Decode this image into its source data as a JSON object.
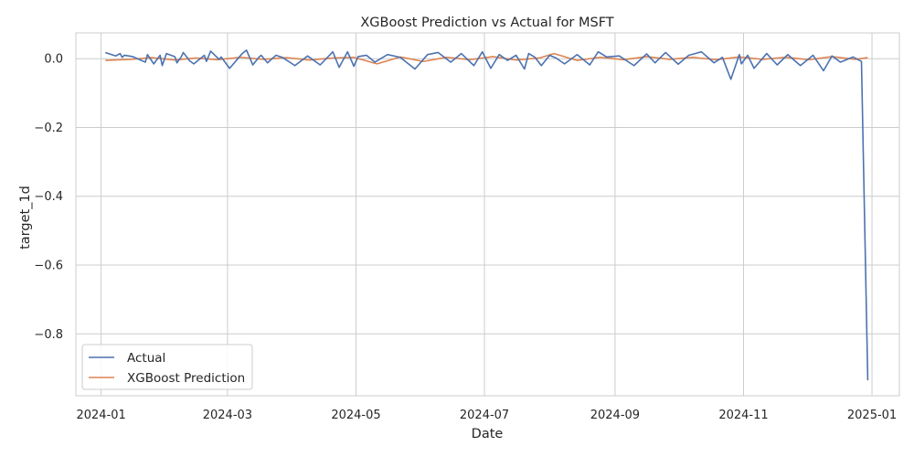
{
  "chart_data": {
    "type": "line",
    "title": "XGBoost Prediction vs Actual for MSFT",
    "xlabel": "Date",
    "ylabel": "target_1d",
    "x_ticks": [
      "2024-01",
      "2024-03",
      "2024-05",
      "2024-07",
      "2024-09",
      "2024-11",
      "2025-01"
    ],
    "y_ticks": [
      0.0,
      -0.2,
      -0.4,
      -0.6,
      -0.8
    ],
    "y_tick_labels": [
      "0.0",
      "−0.2",
      "−0.4",
      "−0.6",
      "−0.8"
    ],
    "xlim": [
      "2023-12-20",
      "2025-01-14"
    ],
    "ylim": [
      -0.98,
      0.075
    ],
    "grid": true,
    "legend_position": "lower-left",
    "series": [
      {
        "name": "Actual",
        "color": "#4c72b0",
        "x": [
          "2024-01-03",
          "2024-01-08",
          "2024-01-10",
          "2024-01-11",
          "2024-01-12",
          "2024-01-16",
          "2024-01-22",
          "2024-01-23",
          "2024-01-26",
          "2024-01-29",
          "2024-01-30",
          "2024-02-01",
          "2024-02-05",
          "2024-02-06",
          "2024-02-08",
          "2024-02-09",
          "2024-02-12",
          "2024-02-14",
          "2024-02-19",
          "2024-02-20",
          "2024-02-22",
          "2024-02-26",
          "2024-02-27",
          "2024-03-02",
          "2024-03-08",
          "2024-03-10",
          "2024-03-13",
          "2024-03-16",
          "2024-03-17",
          "2024-03-20",
          "2024-03-24",
          "2024-03-27",
          "2024-04-02",
          "2024-04-08",
          "2024-04-14",
          "2024-04-20",
          "2024-04-23",
          "2024-04-27",
          "2024-04-30",
          "2024-05-02",
          "2024-05-06",
          "2024-05-10",
          "2024-05-16",
          "2024-05-22",
          "2024-05-29",
          "2024-06-04",
          "2024-06-09",
          "2024-06-15",
          "2024-06-20",
          "2024-06-26",
          "2024-06-30",
          "2024-07-04",
          "2024-07-08",
          "2024-07-12",
          "2024-07-16",
          "2024-07-20",
          "2024-07-22",
          "2024-07-25",
          "2024-07-28",
          "2024-08-01",
          "2024-08-04",
          "2024-08-08",
          "2024-08-14",
          "2024-08-20",
          "2024-08-24",
          "2024-08-28",
          "2024-09-03",
          "2024-09-10",
          "2024-09-16",
          "2024-09-20",
          "2024-09-25",
          "2024-10-01",
          "2024-10-06",
          "2024-10-12",
          "2024-10-18",
          "2024-10-22",
          "2024-10-26",
          "2024-10-30",
          "2024-10-31",
          "2024-11-03",
          "2024-11-06",
          "2024-11-12",
          "2024-11-17",
          "2024-11-22",
          "2024-11-28",
          "2024-12-04",
          "2024-12-09",
          "2024-12-13",
          "2024-12-17",
          "2024-12-23",
          "2024-12-27",
          "2024-12-30"
        ],
        "values": [
          0.018,
          0.008,
          0.015,
          0.004,
          0.01,
          0.006,
          -0.01,
          0.012,
          -0.015,
          0.01,
          -0.02,
          0.015,
          0.006,
          -0.012,
          0.005,
          0.018,
          -0.006,
          -0.015,
          0.01,
          -0.008,
          0.022,
          -0.002,
          0.005,
          -0.028,
          0.015,
          0.025,
          -0.018,
          0.005,
          0.01,
          -0.012,
          0.01,
          0.004,
          -0.02,
          0.008,
          -0.018,
          0.02,
          -0.025,
          0.02,
          -0.022,
          0.006,
          0.01,
          -0.01,
          0.012,
          0.004,
          -0.03,
          0.012,
          0.018,
          -0.01,
          0.015,
          -0.02,
          0.02,
          -0.028,
          0.012,
          -0.005,
          0.01,
          -0.03,
          0.015,
          0.004,
          -0.02,
          0.01,
          0.002,
          -0.015,
          0.012,
          -0.018,
          0.02,
          0.005,
          0.008,
          -0.02,
          0.014,
          -0.012,
          0.018,
          -0.016,
          0.01,
          0.02,
          -0.012,
          0.004,
          -0.06,
          0.012,
          -0.015,
          0.01,
          -0.028,
          0.015,
          -0.018,
          0.012,
          -0.02,
          0.01,
          -0.035,
          0.008,
          -0.01,
          0.005,
          -0.008,
          -0.935
        ]
      },
      {
        "name": "XGBoost Prediction",
        "color": "#dd8452",
        "x": [
          "2024-01-03",
          "2024-01-15",
          "2024-01-25",
          "2024-02-05",
          "2024-02-15",
          "2024-02-25",
          "2024-03-07",
          "2024-03-18",
          "2024-03-29",
          "2024-04-09",
          "2024-04-20",
          "2024-04-30",
          "2024-05-11",
          "2024-05-22",
          "2024-06-02",
          "2024-06-13",
          "2024-06-24",
          "2024-07-05",
          "2024-07-16",
          "2024-07-27",
          "2024-08-03",
          "2024-08-14",
          "2024-08-25",
          "2024-09-05",
          "2024-09-16",
          "2024-09-27",
          "2024-10-08",
          "2024-10-19",
          "2024-10-30",
          "2024-11-10",
          "2024-11-21",
          "2024-12-02",
          "2024-12-13",
          "2024-12-24",
          "2024-12-30"
        ],
        "values": [
          -0.005,
          -0.002,
          0.003,
          -0.004,
          0.002,
          -0.003,
          0.004,
          -0.002,
          0.003,
          -0.004,
          0.002,
          0.004,
          -0.015,
          0.005,
          -0.008,
          0.004,
          -0.003,
          0.006,
          -0.004,
          0.002,
          0.015,
          -0.005,
          0.004,
          -0.003,
          0.006,
          -0.002,
          0.004,
          -0.003,
          0.005,
          -0.002,
          0.004,
          -0.003,
          0.006,
          -0.002,
          0.003
        ]
      }
    ]
  }
}
